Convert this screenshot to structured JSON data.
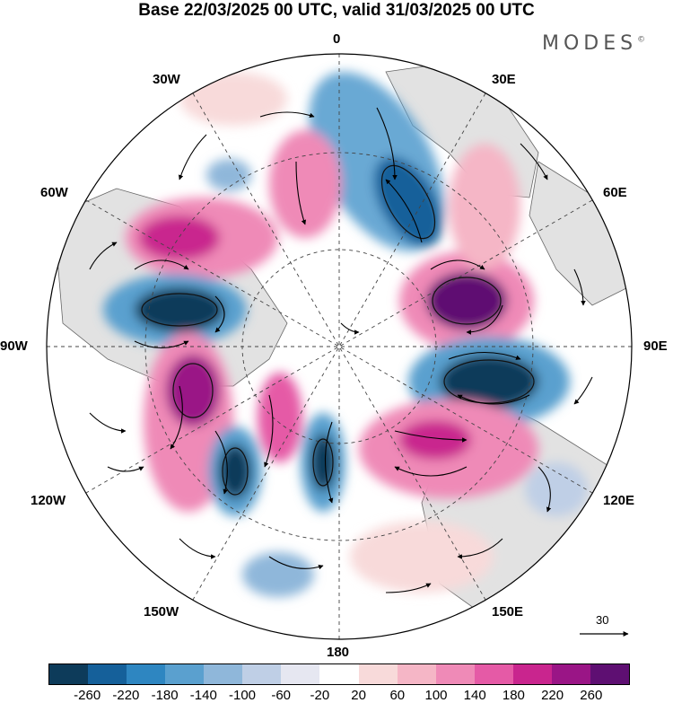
{
  "title": "Base 22/03/2025 00 UTC, valid 31/03/2025 00 UTC",
  "brand": "MODES",
  "brand_mark": "©",
  "longitude_labels": {
    "top": "0",
    "bottom": "180",
    "left": "90W",
    "right": "90E",
    "nw1": "30W",
    "nw2": "60W",
    "ne1": "30E",
    "ne2": "60E",
    "sw1": "120W",
    "sw2": "150W",
    "se1": "120E",
    "se2": "150E"
  },
  "reference_vector": {
    "value": "30"
  },
  "colorbar": {
    "colors": [
      "#0d3b5a",
      "#15609a",
      "#2e86c1",
      "#5aa0cf",
      "#8fb7da",
      "#bfcfe6",
      "#e6e7f1",
      "#ffffff",
      "#f8dada",
      "#f5b6c6",
      "#ef8ab7",
      "#e55aa6",
      "#c9258e",
      "#9a1586",
      "#5e0f72"
    ],
    "tick_labels": [
      "-260",
      "-220",
      "-180",
      "-140",
      "-100",
      "-60",
      "-20",
      "20",
      "60",
      "100",
      "140",
      "180",
      "220",
      "260"
    ]
  },
  "colors": {
    "land": "#e2e2e2",
    "coast": "#555555"
  }
}
